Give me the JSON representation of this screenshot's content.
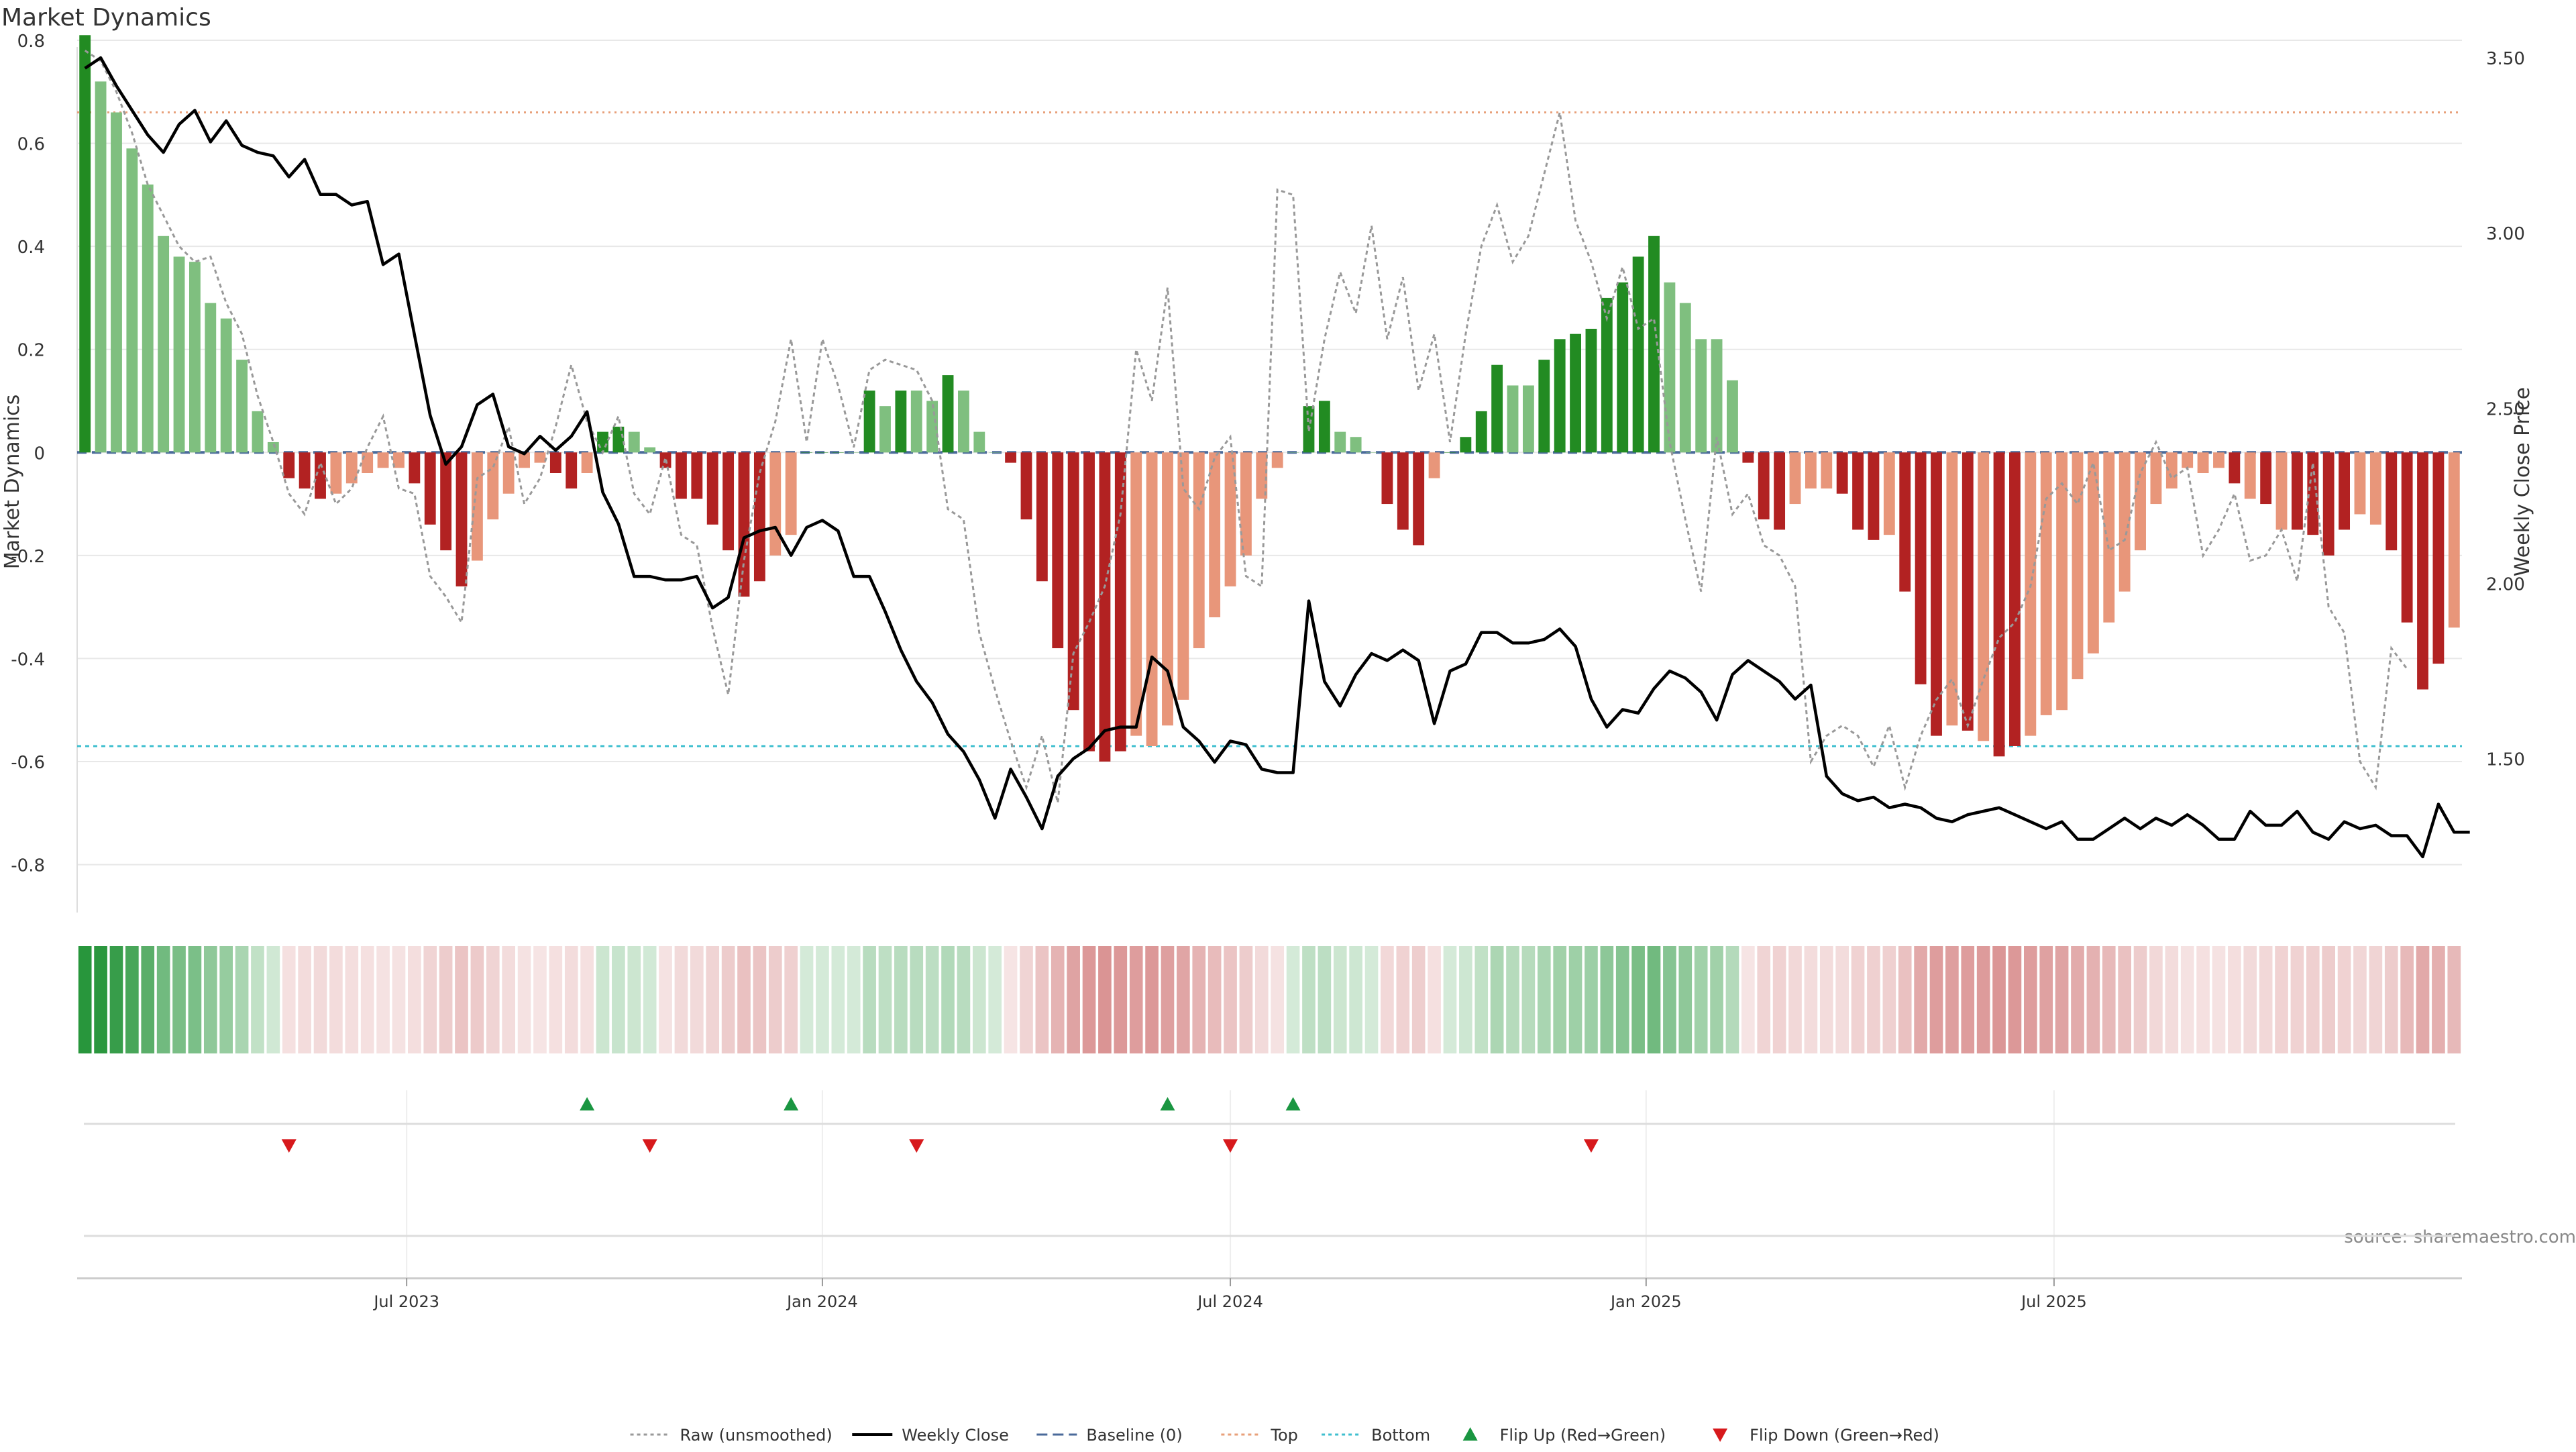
{
  "chart_data": {
    "type": "bar",
    "title": "Market Dynamics",
    "ylabel_left": "Market Dynamics",
    "ylabel_right": "Weekly Close Price",
    "ylim_left": [
      -0.88,
      0.8
    ],
    "ylim_right": [
      1.08,
      3.55
    ],
    "yticks_left": [
      "0.8",
      "0.6",
      "0.4",
      "0.2",
      "0",
      "-0.2",
      "-0.4",
      "-0.6",
      "-0.8"
    ],
    "yticks_right": [
      "3.50",
      "3.00",
      "2.50",
      "2.00",
      "1.50"
    ],
    "xticks": [
      "Jul 2023",
      "Jan 2024",
      "Jul 2024",
      "Jan 2025",
      "Jul 2025"
    ],
    "reference_lines": {
      "baseline": 0,
      "top": 0.66,
      "bottom": -0.57
    },
    "grid": true,
    "legend_position": "bottom-center",
    "source": "source: sharemaestro.com",
    "colors": {
      "bar_green_strong": "#228b22",
      "bar_green_weak": "#7fbf7f",
      "bar_red_strong": "#b22222",
      "bar_red_weak": "#e8967a",
      "close_line": "#000000",
      "raw_line": "#999999",
      "baseline": "#4a6a9a",
      "top": "#e8a07a",
      "bottom": "#3fbfcf",
      "flip_up": "#1a9641",
      "flip_down": "#d7191c"
    },
    "series": [
      {
        "name": "Market Dynamics",
        "kind": "bar",
        "values": [
          0.81,
          0.72,
          0.66,
          0.59,
          0.52,
          0.42,
          0.38,
          0.37,
          0.29,
          0.26,
          0.18,
          0.08,
          0.02,
          -0.05,
          -0.07,
          -0.09,
          -0.08,
          -0.06,
          -0.04,
          -0.03,
          -0.03,
          -0.06,
          -0.14,
          -0.19,
          -0.26,
          -0.21,
          -0.13,
          -0.08,
          -0.03,
          -0.02,
          -0.04,
          -0.07,
          -0.04,
          0.04,
          0.05,
          0.04,
          0.01,
          -0.03,
          -0.09,
          -0.09,
          -0.14,
          -0.19,
          -0.28,
          -0.25,
          -0.2,
          -0.16,
          0.0,
          0.0,
          0.0,
          0.0,
          0.12,
          0.09,
          0.12,
          0.12,
          0.1,
          0.15,
          0.12,
          0.04,
          0.0,
          -0.02,
          -0.13,
          -0.25,
          -0.38,
          -0.5,
          -0.58,
          -0.6,
          -0.58,
          -0.55,
          -0.57,
          -0.53,
          -0.48,
          -0.38,
          -0.32,
          -0.26,
          -0.2,
          -0.09,
          -0.03,
          0.0,
          0.09,
          0.1,
          0.04,
          0.03,
          0.0,
          -0.1,
          -0.15,
          -0.18,
          -0.05,
          0.0,
          0.03,
          0.08,
          0.17,
          0.13,
          0.13,
          0.18,
          0.22,
          0.23,
          0.24,
          0.3,
          0.33,
          0.38,
          0.42,
          0.33,
          0.29,
          0.22,
          0.22,
          0.14,
          -0.02,
          -0.13,
          -0.15,
          -0.1,
          -0.07,
          -0.07,
          -0.08,
          -0.15,
          -0.17,
          -0.16,
          -0.27,
          -0.45,
          -0.55,
          -0.53,
          -0.54,
          -0.56,
          -0.59,
          -0.57,
          -0.55,
          -0.51,
          -0.5,
          -0.44,
          -0.39,
          -0.33,
          -0.27,
          -0.19,
          -0.1,
          -0.07,
          -0.03,
          -0.04,
          -0.03,
          -0.06,
          -0.09,
          -0.1,
          -0.15,
          -0.15,
          -0.16,
          -0.2,
          -0.15,
          -0.12,
          -0.14,
          -0.19,
          -0.33,
          -0.46,
          -0.41,
          -0.34
        ],
        "strength": [
          "s",
          "w",
          "w",
          "w",
          "w",
          "w",
          "w",
          "w",
          "w",
          "w",
          "w",
          "w",
          "w",
          "s",
          "s",
          "s",
          "w",
          "w",
          "w",
          "w",
          "w",
          "s",
          "s",
          "s",
          "s",
          "w",
          "w",
          "w",
          "w",
          "w",
          "s",
          "s",
          "w",
          "s",
          "s",
          "w",
          "w",
          "s",
          "s",
          "s",
          "s",
          "s",
          "s",
          "s",
          "w",
          "w",
          "s",
          "s",
          "s",
          "w",
          "s",
          "w",
          "s",
          "w",
          "w",
          "s",
          "w",
          "w",
          "w",
          "s",
          "s",
          "s",
          "s",
          "s",
          "s",
          "s",
          "s",
          "w",
          "w",
          "w",
          "w",
          "w",
          "w",
          "w",
          "w",
          "w",
          "w",
          "w",
          "s",
          "s",
          "w",
          "w",
          "w",
          "s",
          "s",
          "s",
          "w",
          "s",
          "s",
          "s",
          "s",
          "w",
          "w",
          "s",
          "s",
          "s",
          "s",
          "s",
          "s",
          "s",
          "s",
          "w",
          "w",
          "w",
          "w",
          "w",
          "s",
          "s",
          "s",
          "w",
          "w",
          "w",
          "s",
          "s",
          "s",
          "w",
          "s",
          "s",
          "s",
          "w",
          "s",
          "w",
          "s",
          "s",
          "w",
          "w",
          "w",
          "w",
          "w",
          "w",
          "w",
          "w",
          "w",
          "w",
          "w",
          "w",
          "w",
          "s",
          "w",
          "s",
          "w",
          "s",
          "s",
          "s",
          "s",
          "w",
          "w",
          "s",
          "s",
          "s",
          "s",
          "w"
        ]
      },
      {
        "name": "Raw (unsmoothed)",
        "kind": "line",
        "values": [
          0.78,
          0.76,
          0.7,
          0.62,
          0.52,
          0.46,
          0.4,
          0.37,
          0.38,
          0.29,
          0.23,
          0.11,
          0.02,
          -0.08,
          -0.12,
          -0.02,
          -0.1,
          -0.07,
          0.01,
          0.07,
          -0.07,
          -0.08,
          -0.24,
          -0.28,
          -0.33,
          -0.05,
          -0.03,
          0.05,
          -0.1,
          -0.05,
          0.05,
          0.17,
          0.06,
          0.0,
          0.07,
          -0.08,
          -0.12,
          -0.01,
          -0.16,
          -0.18,
          -0.34,
          -0.47,
          -0.21,
          -0.04,
          0.06,
          0.22,
          0.02,
          0.22,
          0.13,
          0.01,
          0.16,
          0.18,
          0.17,
          0.16,
          0.1,
          -0.11,
          -0.13,
          -0.35,
          -0.46,
          -0.56,
          -0.65,
          -0.55,
          -0.68,
          -0.39,
          -0.33,
          -0.26,
          -0.12,
          0.2,
          0.1,
          0.32,
          -0.07,
          -0.11,
          -0.01,
          0.03,
          -0.24,
          -0.26,
          0.51,
          0.5,
          0.04,
          0.22,
          0.35,
          0.27,
          0.44,
          0.22,
          0.34,
          0.12,
          0.23,
          0.02,
          0.23,
          0.4,
          0.48,
          0.37,
          0.42,
          0.54,
          0.66,
          0.45,
          0.37,
          0.26,
          0.36,
          0.24,
          0.26,
          0.02,
          -0.13,
          -0.27,
          0.03,
          -0.12,
          -0.08,
          -0.18,
          -0.2,
          -0.26,
          -0.6,
          -0.55,
          -0.53,
          -0.55,
          -0.61,
          -0.53,
          -0.65,
          -0.55,
          -0.48,
          -0.44,
          -0.53,
          -0.44,
          -0.36,
          -0.33,
          -0.26,
          -0.09,
          -0.06,
          -0.1,
          -0.02,
          -0.19,
          -0.17,
          -0.04,
          0.02,
          -0.05,
          -0.03,
          -0.2,
          -0.15,
          -0.08,
          -0.21,
          -0.2,
          -0.15,
          -0.25,
          -0.02,
          -0.3,
          -0.35,
          -0.6,
          -0.65,
          -0.38,
          -0.42
        ]
      },
      {
        "name": "Weekly Close",
        "kind": "line",
        "axis": "right",
        "values": [
          3.47,
          3.5,
          3.42,
          3.35,
          3.28,
          3.23,
          3.31,
          3.35,
          3.26,
          3.32,
          3.25,
          3.23,
          3.22,
          3.16,
          3.21,
          3.11,
          3.11,
          3.08,
          3.09,
          2.91,
          2.94,
          2.71,
          2.48,
          2.34,
          2.39,
          2.51,
          2.54,
          2.39,
          2.37,
          2.42,
          2.38,
          2.42,
          2.49,
          2.26,
          2.17,
          2.02,
          2.02,
          2.01,
          2.01,
          2.02,
          1.93,
          1.96,
          2.13,
          2.15,
          2.16,
          2.08,
          2.16,
          2.18,
          2.15,
          2.02,
          2.02,
          1.92,
          1.81,
          1.72,
          1.66,
          1.57,
          1.52,
          1.44,
          1.33,
          1.47,
          1.39,
          1.3,
          1.45,
          1.5,
          1.53,
          1.58,
          1.59,
          1.59,
          1.79,
          1.75,
          1.59,
          1.55,
          1.49,
          1.55,
          1.54,
          1.47,
          1.46,
          1.46,
          1.95,
          1.72,
          1.65,
          1.74,
          1.8,
          1.78,
          1.81,
          1.78,
          1.6,
          1.75,
          1.77,
          1.86,
          1.86,
          1.83,
          1.83,
          1.84,
          1.87,
          1.82,
          1.67,
          1.59,
          1.64,
          1.63,
          1.7,
          1.75,
          1.73,
          1.69,
          1.61,
          1.74,
          1.78,
          1.75,
          1.72,
          1.67,
          1.71,
          1.45,
          1.4,
          1.38,
          1.39,
          1.36,
          1.37,
          1.36,
          1.33,
          1.32,
          1.34,
          1.35,
          1.36,
          1.34,
          1.32,
          1.3,
          1.32,
          1.27,
          1.27,
          1.3,
          1.33,
          1.3,
          1.33,
          1.31,
          1.34,
          1.31,
          1.27,
          1.27,
          1.35,
          1.31,
          1.31,
          1.35,
          1.29,
          1.27,
          1.32,
          1.3,
          1.31,
          1.28,
          1.28,
          1.22,
          1.37,
          1.29,
          1.29
        ]
      }
    ],
    "heatmap_strip": {
      "description": "sentiment strip per week",
      "values": [
        0.81,
        0.72,
        0.66,
        0.59,
        0.52,
        0.42,
        0.38,
        0.37,
        0.29,
        0.26,
        0.18,
        0.08,
        0.02,
        -0.05,
        -0.07,
        -0.09,
        -0.08,
        -0.06,
        -0.04,
        -0.03,
        -0.03,
        -0.06,
        -0.14,
        -0.19,
        -0.26,
        -0.21,
        -0.13,
        -0.08,
        -0.03,
        -0.02,
        -0.04,
        -0.07,
        -0.04,
        0.04,
        0.05,
        0.04,
        0.01,
        -0.03,
        -0.09,
        -0.09,
        -0.14,
        -0.19,
        -0.28,
        -0.25,
        -0.2,
        -0.16,
        0.0,
        0.0,
        0.0,
        0.0,
        0.12,
        0.09,
        0.12,
        0.12,
        0.1,
        0.15,
        0.12,
        0.04,
        0.0,
        -0.02,
        -0.13,
        -0.25,
        -0.38,
        -0.5,
        -0.58,
        -0.6,
        -0.58,
        -0.55,
        -0.57,
        -0.53,
        -0.48,
        -0.38,
        -0.32,
        -0.26,
        -0.2,
        -0.09,
        -0.03,
        0.0,
        0.09,
        0.1,
        0.04,
        0.03,
        0.0,
        -0.1,
        -0.15,
        -0.18,
        -0.05,
        0.0,
        0.03,
        0.08,
        0.17,
        0.13,
        0.13,
        0.18,
        0.22,
        0.23,
        0.24,
        0.3,
        0.33,
        0.38,
        0.42,
        0.33,
        0.29,
        0.22,
        0.22,
        0.14,
        -0.02,
        -0.13,
        -0.15,
        -0.1,
        -0.07,
        -0.07,
        -0.08,
        -0.15,
        -0.17,
        -0.16,
        -0.27,
        -0.45,
        -0.55,
        -0.53,
        -0.54,
        -0.56,
        -0.59,
        -0.57,
        -0.55,
        -0.51,
        -0.5,
        -0.44,
        -0.39,
        -0.33,
        -0.27,
        -0.19,
        -0.1,
        -0.07,
        -0.03,
        -0.04,
        -0.03,
        -0.06,
        -0.09,
        -0.1,
        -0.15,
        -0.15,
        -0.16,
        -0.2,
        -0.15,
        -0.12,
        -0.14,
        -0.19,
        -0.33,
        -0.46,
        -0.41,
        -0.34
      ]
    },
    "flips_up_week_index": [
      32,
      45,
      69,
      77
    ],
    "flips_down_week_index": [
      13,
      36,
      53,
      73,
      96
    ],
    "legend": [
      {
        "label": "Raw (unsmoothed)",
        "style": "dotted",
        "color": "#999999"
      },
      {
        "label": "Weekly Close",
        "style": "solid",
        "color": "#000000"
      },
      {
        "label": "Baseline (0)",
        "style": "dashed",
        "color": "#4a6a9a"
      },
      {
        "label": "Top",
        "style": "dotted",
        "color": "#e8a07a"
      },
      {
        "label": "Bottom",
        "style": "dotted",
        "color": "#3fbfcf"
      },
      {
        "label": "Flip Up (Red→Green)",
        "style": "triangle-up",
        "color": "#1a9641"
      },
      {
        "label": "Flip Down (Green→Red)",
        "style": "triangle-down",
        "color": "#d7191c"
      }
    ]
  }
}
